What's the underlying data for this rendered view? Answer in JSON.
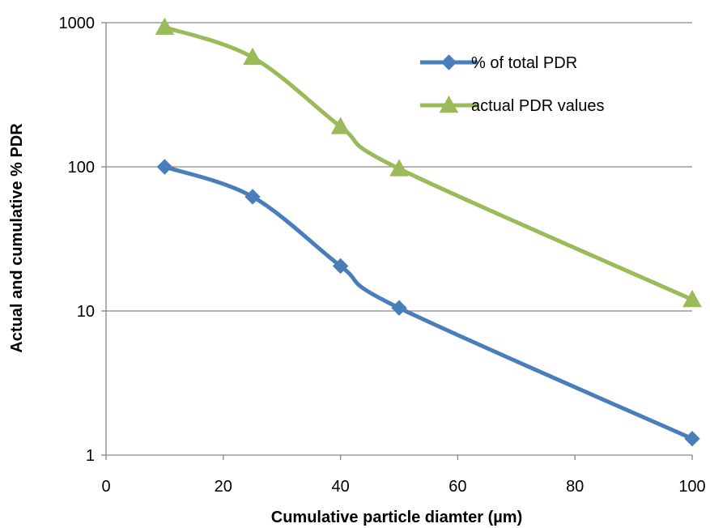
{
  "chart_data": {
    "type": "line",
    "title": "",
    "xlabel": "Cumulative particle diamter (µm)",
    "ylabel": "Actual and cumulative % PDR",
    "xlim": [
      0,
      100
    ],
    "ylim": [
      1,
      1000
    ],
    "y_scale": "log",
    "grid": "horizontal major gridlines",
    "legend_position": "top-right",
    "x_ticks": [
      "0",
      "20",
      "40",
      "60",
      "80",
      "100"
    ],
    "y_ticks": [
      "1",
      "10",
      "100",
      "1000"
    ],
    "series": [
      {
        "name": "% of total PDR",
        "marker": "diamond",
        "color": "#4a7ebb",
        "x": [
          10,
          25,
          40,
          50,
          100
        ],
        "y": [
          100,
          62,
          20.5,
          10.5,
          1.3
        ]
      },
      {
        "name": "actual PDR values",
        "marker": "triangle",
        "color": "#9bbb59",
        "x": [
          10,
          25,
          40,
          50,
          100
        ],
        "y": [
          930,
          575,
          190,
          97,
          12
        ]
      }
    ]
  }
}
